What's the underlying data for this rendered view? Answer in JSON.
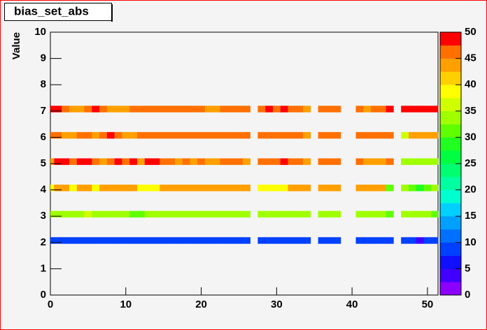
{
  "chart_data": {
    "type": "heatmap",
    "title": "bias_set_abs",
    "ylabel": "Value",
    "xlim": [
      0,
      51.4
    ],
    "xticks": [
      0,
      10,
      20,
      30,
      40,
      50
    ],
    "ylim": [
      0,
      10
    ],
    "yticks": [
      0,
      1,
      2,
      3,
      4,
      5,
      6,
      7,
      8,
      9,
      10
    ],
    "zlim": [
      0,
      50
    ],
    "zticks": [
      0,
      5,
      10,
      15,
      20,
      25,
      30,
      35,
      40,
      45,
      50
    ],
    "palette": [
      "#8b00ff",
      "#4000ff",
      "#1010ff",
      "#0040ff",
      "#0070ff",
      "#00a0ff",
      "#00d0ff",
      "#00ffd0",
      "#00ffa0",
      "#00ff70",
      "#00ff40",
      "#20ff20",
      "#60ff00",
      "#a0ff00",
      "#d0ff00",
      "#ffff00",
      "#ffd000",
      "#ffa000",
      "#ff7000",
      "#ff0000"
    ],
    "x": [
      0,
      1,
      2,
      3,
      4,
      5,
      6,
      7,
      8,
      9,
      10,
      11,
      12,
      13,
      14,
      15,
      16,
      17,
      18,
      19,
      20,
      21,
      22,
      23,
      24,
      25,
      26,
      27,
      28,
      29,
      30,
      31,
      32,
      33,
      34,
      35,
      36,
      37,
      38,
      39,
      40,
      41,
      42,
      43,
      44,
      45,
      46,
      47,
      48,
      49,
      50,
      51
    ],
    "rows": [
      {
        "y": 7,
        "values": [
          49,
          49,
          46,
          43,
          43,
          46,
          49,
          46,
          43,
          43,
          43,
          46,
          46,
          46,
          46,
          46,
          46,
          46,
          46,
          46,
          46,
          43,
          43,
          46,
          46,
          46,
          46,
          null,
          46,
          49,
          46,
          49,
          46,
          46,
          43,
          null,
          46,
          46,
          46,
          null,
          null,
          46,
          43,
          46,
          46,
          49,
          null,
          49,
          49,
          49,
          49,
          49
        ]
      },
      {
        "y": 6,
        "values": [
          46,
          46,
          43,
          43,
          46,
          46,
          43,
          46,
          49,
          46,
          43,
          43,
          46,
          46,
          46,
          46,
          46,
          46,
          46,
          46,
          46,
          46,
          46,
          46,
          46,
          46,
          46,
          null,
          46,
          46,
          46,
          46,
          46,
          46,
          43,
          null,
          46,
          46,
          46,
          null,
          null,
          46,
          46,
          46,
          46,
          46,
          null,
          37,
          43,
          43,
          43,
          43
        ]
      },
      {
        "y": 5,
        "values": [
          43,
          49,
          49,
          46,
          49,
          49,
          46,
          43,
          46,
          49,
          46,
          49,
          43,
          49,
          49,
          46,
          46,
          43,
          46,
          43,
          46,
          43,
          43,
          46,
          46,
          46,
          43,
          null,
          46,
          46,
          46,
          49,
          46,
          46,
          43,
          null,
          46,
          46,
          46,
          null,
          null,
          46,
          43,
          43,
          43,
          46,
          null,
          33,
          33,
          33,
          33,
          33
        ]
      },
      {
        "y": 4,
        "values": [
          38,
          43,
          43,
          38,
          43,
          43,
          38,
          43,
          43,
          43,
          43,
          43,
          38,
          38,
          38,
          43,
          43,
          43,
          43,
          43,
          43,
          43,
          43,
          43,
          43,
          43,
          43,
          null,
          38,
          38,
          38,
          38,
          43,
          43,
          43,
          null,
          43,
          43,
          43,
          null,
          null,
          43,
          43,
          43,
          43,
          30,
          null,
          33,
          30,
          28,
          30,
          33
        ]
      },
      {
        "y": 3,
        "values": [
          34,
          34,
          34,
          34,
          34,
          37,
          34,
          34,
          34,
          34,
          34,
          31,
          31,
          34,
          34,
          34,
          34,
          34,
          34,
          34,
          34,
          34,
          34,
          34,
          34,
          34,
          34,
          null,
          34,
          34,
          34,
          34,
          34,
          34,
          34,
          null,
          34,
          34,
          34,
          null,
          null,
          34,
          34,
          34,
          34,
          30,
          null,
          34,
          34,
          34,
          34,
          31
        ]
      },
      {
        "y": 2,
        "values": [
          8,
          8,
          8,
          8,
          8,
          8,
          8,
          8,
          8,
          8,
          8,
          8,
          8,
          8,
          8,
          8,
          8,
          8,
          8,
          8,
          8,
          8,
          8,
          8,
          8,
          8,
          8,
          null,
          8,
          8,
          8,
          8,
          8,
          8,
          8,
          null,
          8,
          8,
          8,
          null,
          null,
          8,
          8,
          8,
          8,
          8,
          null,
          8,
          8,
          3,
          8,
          8
        ]
      }
    ]
  }
}
